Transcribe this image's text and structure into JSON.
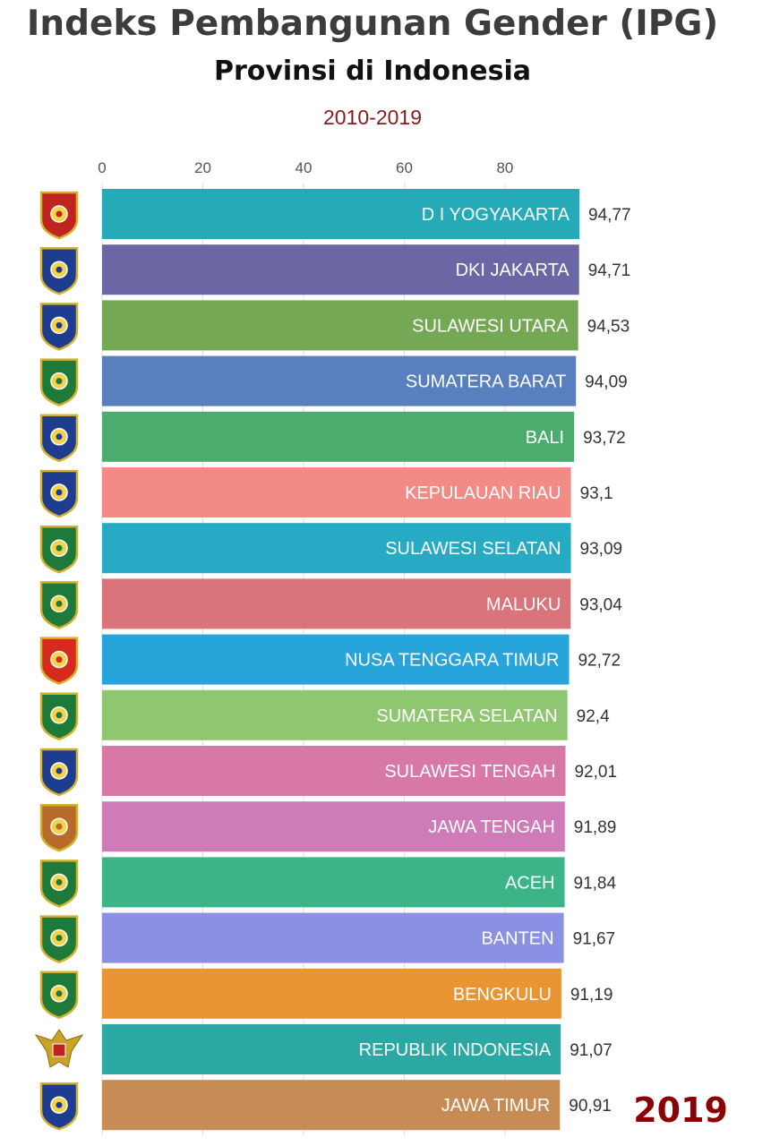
{
  "chart_data": {
    "type": "bar",
    "title": "Indeks Pembangunan Gender (IPG)",
    "subtitle": "Provinsi di Indonesia",
    "period": "2010-2019",
    "current_year": "2019",
    "xlim": [
      0,
      94.77
    ],
    "x_ticks": [
      "0",
      "20",
      "40",
      "60",
      "80"
    ],
    "grid": "vertical",
    "categories": [
      "D I YOGYAKARTA",
      "DKI JAKARTA",
      "SULAWESI UTARA",
      "SUMATERA BARAT",
      "BALI",
      "KEPULAUAN RIAU",
      "SULAWESI SELATAN",
      "MALUKU",
      "NUSA TENGGARA TIMUR",
      "SUMATERA SELATAN",
      "SULAWESI TENGAH",
      "JAWA TENGAH",
      "ACEH",
      "BANTEN",
      "BENGKULU",
      "REPUBLIK INDONESIA",
      "JAWA TIMUR"
    ],
    "values": [
      94.77,
      94.71,
      94.53,
      94.09,
      93.72,
      93.1,
      93.09,
      93.04,
      92.72,
      92.4,
      92.01,
      91.89,
      91.84,
      91.67,
      91.19,
      91.07,
      90.91
    ],
    "value_labels": [
      "94,77",
      "94,71",
      "94,53",
      "94,09",
      "93,72",
      "93,1",
      "93,09",
      "93,04",
      "92,72",
      "92,4",
      "92,01",
      "91,89",
      "91,84",
      "91,67",
      "91,19",
      "91,07",
      "90,91"
    ],
    "bar_colors": [
      "#27aab8",
      "#6a67a4",
      "#74a855",
      "#587fbe",
      "#4cac6e",
      "#f28b85",
      "#27aac3",
      "#d8747a",
      "#27a5da",
      "#8fc771",
      "#d878a7",
      "#cf7bb8",
      "#3bb488",
      "#8a90e3",
      "#e99533",
      "#2ba8a3",
      "#c78c55"
    ],
    "emblem_colors": [
      "#c02420",
      "#1e3d8f",
      "#1e3d8f",
      "#1d7a3a",
      "#1e3d8f",
      "#1e3d8f",
      "#1d7a3a",
      "#1d7a3a",
      "#d62a1f",
      "#1d7a3a",
      "#1e3d8f",
      "#b86a2b",
      "#1d7a3a",
      "#1d7a3a",
      "#1d7a3a",
      "#c9a227",
      "#1e3d8f"
    ],
    "emblem_icons": [
      "province-emblem-icon",
      "province-emblem-icon",
      "province-emblem-icon",
      "province-emblem-icon",
      "province-emblem-icon",
      "province-emblem-icon",
      "province-emblem-icon",
      "province-emblem-icon",
      "province-emblem-icon",
      "province-emblem-icon",
      "province-emblem-icon",
      "province-emblem-icon",
      "province-emblem-icon",
      "province-emblem-icon",
      "province-emblem-icon",
      "garuda-emblem-icon",
      "province-emblem-icon"
    ]
  }
}
